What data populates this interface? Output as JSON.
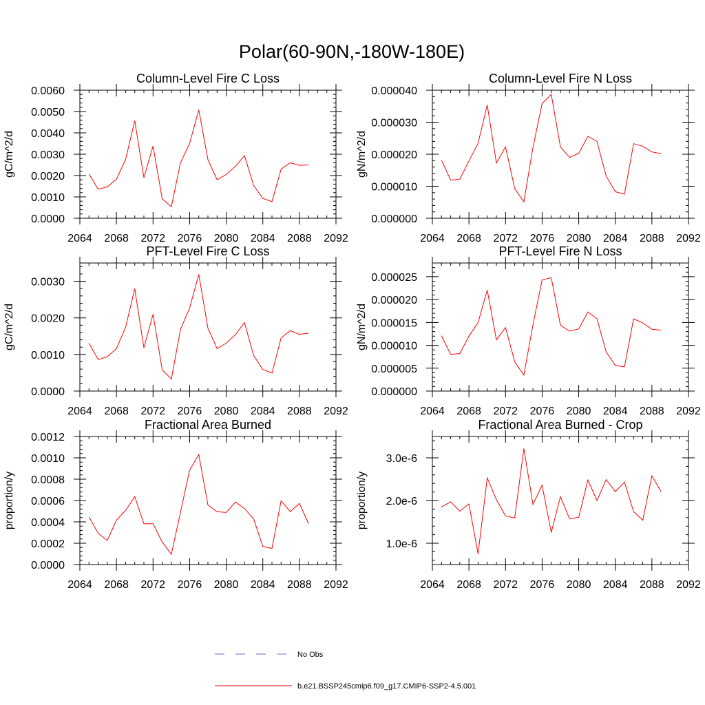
{
  "figure": {
    "title": "Polar(60-90N,-180W-180E)"
  },
  "colors": {
    "model": "#ff0000",
    "obs": "#6a6ad6",
    "axis": "#000000",
    "background": "#ffffff"
  },
  "legend": {
    "entries": [
      {
        "label": "No Obs",
        "style": "dashed",
        "color": "#6a6ad6"
      },
      {
        "label": "b.e21.BSSP245cmip6.f09_g17.CMIP6-SSP2-4.5.001",
        "style": "solid",
        "color": "#ff0000"
      }
    ]
  },
  "chart_data": [
    {
      "type": "line",
      "title": "Column-Level Fire C Loss",
      "xlabel": "",
      "ylabel": "gC/m^2/d",
      "xlim": [
        2064,
        2092
      ],
      "ylim": [
        0,
        0.006
      ],
      "xticks": [
        2064,
        2068,
        2072,
        2076,
        2080,
        2084,
        2088,
        2092
      ],
      "xtick_labels": [
        "2064",
        "2068",
        "2072",
        "2076",
        "2080",
        "2084",
        "2088",
        "2092"
      ],
      "yticks": [
        0,
        0.001,
        0.002,
        0.003,
        0.004,
        0.005,
        0.006
      ],
      "ytick_labels": [
        "0.0000",
        "0.0010",
        "0.0020",
        "0.0030",
        "0.0040",
        "0.0050",
        "0.0060"
      ],
      "x": [
        2065,
        2066,
        2067,
        2068,
        2069,
        2070,
        2071,
        2072,
        2073,
        2074,
        2075,
        2076,
        2077,
        2078,
        2079,
        2080,
        2081,
        2082,
        2083,
        2084,
        2085,
        2086,
        2087,
        2088,
        2089
      ],
      "series": [
        {
          "values": [
            0.00207,
            0.00136,
            0.00147,
            0.00183,
            0.00275,
            0.00457,
            0.0019,
            0.00338,
            0.00091,
            0.00054,
            0.0026,
            0.0035,
            0.00508,
            0.00275,
            0.0018,
            0.00205,
            0.00243,
            0.00293,
            0.00154,
            0.00093,
            0.00078,
            0.0023,
            0.0026,
            0.00248,
            0.0025
          ]
        }
      ]
    },
    {
      "type": "line",
      "title": "Column-Level Fire N Loss",
      "xlabel": "",
      "ylabel": "gN/m^2/d",
      "xlim": [
        2064,
        2092
      ],
      "ylim": [
        0,
        4e-05
      ],
      "xticks": [
        2064,
        2068,
        2072,
        2076,
        2080,
        2084,
        2088,
        2092
      ],
      "xtick_labels": [
        "2064",
        "2068",
        "2072",
        "2076",
        "2080",
        "2084",
        "2088",
        "2092"
      ],
      "yticks": [
        0,
        1e-05,
        2e-05,
        3e-05,
        4e-05
      ],
      "ytick_labels": [
        "0.000000",
        "0.000010",
        "0.000020",
        "0.000030",
        "0.000040"
      ],
      "x": [
        2065,
        2066,
        2067,
        2068,
        2069,
        2070,
        2071,
        2072,
        2073,
        2074,
        2075,
        2076,
        2077,
        2078,
        2079,
        2080,
        2081,
        2082,
        2083,
        2084,
        2085,
        2086,
        2087,
        2088,
        2089
      ],
      "series": [
        {
          "values": [
            1.81e-05,
            1.19e-05,
            1.22e-05,
            1.79e-05,
            2.34e-05,
            3.54e-05,
            1.73e-05,
            2.23e-05,
            9.3e-06,
            5.1e-06,
            2.21e-05,
            3.58e-05,
            3.87e-05,
            2.23e-05,
            1.9e-05,
            2.03e-05,
            2.56e-05,
            2.4e-05,
            1.32e-05,
            8.3e-06,
            7.5e-06,
            2.33e-05,
            2.25e-05,
            2.07e-05,
            2.02e-05
          ]
        }
      ]
    },
    {
      "type": "line",
      "title": "PFT-Level Fire C Loss",
      "xlabel": "",
      "ylabel": "gC/m^2/d",
      "xlim": [
        2064,
        2092
      ],
      "ylim": [
        0,
        0.0035
      ],
      "xticks": [
        2064,
        2068,
        2072,
        2076,
        2080,
        2084,
        2088,
        2092
      ],
      "xtick_labels": [
        "2064",
        "2068",
        "2072",
        "2076",
        "2080",
        "2084",
        "2088",
        "2092"
      ],
      "yticks": [
        0,
        0.001,
        0.002,
        0.003
      ],
      "ytick_labels": [
        "0.0000",
        "0.0010",
        "0.0020",
        "0.0030"
      ],
      "x": [
        2065,
        2066,
        2067,
        2068,
        2069,
        2070,
        2071,
        2072,
        2073,
        2074,
        2075,
        2076,
        2077,
        2078,
        2079,
        2080,
        2081,
        2082,
        2083,
        2084,
        2085,
        2086,
        2087,
        2088,
        2089
      ],
      "series": [
        {
          "values": [
            0.00131,
            0.00086,
            0.00094,
            0.00116,
            0.00174,
            0.0028,
            0.00118,
            0.0021,
            0.00058,
            0.00033,
            0.00168,
            0.00227,
            0.00319,
            0.00172,
            0.00116,
            0.00131,
            0.00154,
            0.00187,
            0.00097,
            0.00059,
            0.00049,
            0.00145,
            0.00165,
            0.00155,
            0.00158
          ]
        }
      ]
    },
    {
      "type": "line",
      "title": "PFT-Level Fire N Loss",
      "xlabel": "",
      "ylabel": "gN/m^2/d",
      "xlim": [
        2064,
        2092
      ],
      "ylim": [
        0,
        2.8e-05
      ],
      "xticks": [
        2064,
        2068,
        2072,
        2076,
        2080,
        2084,
        2088,
        2092
      ],
      "xtick_labels": [
        "2064",
        "2068",
        "2072",
        "2076",
        "2080",
        "2084",
        "2088",
        "2092"
      ],
      "yticks": [
        0,
        5e-06,
        1e-05,
        1.5e-05,
        2e-05,
        2.5e-05
      ],
      "ytick_labels": [
        "0.000000",
        "0.000005",
        "0.000010",
        "0.000015",
        "0.000020",
        "0.000025"
      ],
      "x": [
        2065,
        2066,
        2067,
        2068,
        2069,
        2070,
        2071,
        2072,
        2073,
        2074,
        2075,
        2076,
        2077,
        2078,
        2079,
        2080,
        2081,
        2082,
        2083,
        2084,
        2085,
        2086,
        2087,
        2088,
        2089
      ],
      "series": [
        {
          "values": [
            1.21e-05,
            8e-06,
            8.2e-06,
            1.2e-05,
            1.5e-05,
            2.21e-05,
            1.12e-05,
            1.39e-05,
            6.4e-06,
            3.5e-06,
            1.45e-05,
            2.43e-05,
            2.48e-05,
            1.44e-05,
            1.31e-05,
            1.36e-05,
            1.73e-05,
            1.58e-05,
            8.6e-06,
            5.6e-06,
            5.3e-06,
            1.58e-05,
            1.49e-05,
            1.35e-05,
            1.33e-05
          ]
        }
      ]
    },
    {
      "type": "line",
      "title": "Fractional Area Burned",
      "xlabel": "",
      "ylabel": "proportion/y",
      "xlim": [
        2064,
        2092
      ],
      "ylim": [
        0,
        0.0012
      ],
      "xticks": [
        2064,
        2068,
        2072,
        2076,
        2080,
        2084,
        2088,
        2092
      ],
      "xtick_labels": [
        "2064",
        "2068",
        "2072",
        "2076",
        "2080",
        "2084",
        "2088",
        "2092"
      ],
      "yticks": [
        0,
        0.0002,
        0.0004,
        0.0006,
        0.0008,
        0.001,
        0.0012
      ],
      "ytick_labels": [
        "0.0000",
        "0.0002",
        "0.0004",
        "0.0006",
        "0.0008",
        "0.0010",
        "0.0012"
      ],
      "x": [
        2065,
        2066,
        2067,
        2068,
        2069,
        2070,
        2071,
        2072,
        2073,
        2074,
        2075,
        2076,
        2077,
        2078,
        2079,
        2080,
        2081,
        2082,
        2083,
        2084,
        2085,
        2086,
        2087,
        2088,
        2089
      ],
      "series": [
        {
          "values": [
            0.000445,
            0.000292,
            0.000226,
            0.000416,
            0.000507,
            0.000636,
            0.000382,
            0.000382,
            0.000211,
            9.6e-05,
            0.000489,
            0.000883,
            0.001032,
            0.000558,
            0.000495,
            0.000488,
            0.000586,
            0.000525,
            0.000427,
            0.00017,
            0.000151,
            0.000599,
            0.000496,
            0.000573,
            0.000384
          ]
        }
      ]
    },
    {
      "type": "line",
      "title": "Fractional Area Burned - Crop",
      "xlabel": "",
      "ylabel": "proportion/y",
      "xlim": [
        2064,
        2092
      ],
      "ylim": [
        5e-07,
        3.5e-06
      ],
      "xticks": [
        2064,
        2068,
        2072,
        2076,
        2080,
        2084,
        2088,
        2092
      ],
      "xtick_labels": [
        "2064",
        "2068",
        "2072",
        "2076",
        "2080",
        "2084",
        "2088",
        "2092"
      ],
      "yticks": [
        1e-06,
        2e-06,
        3e-06
      ],
      "ytick_labels": [
        "1.0e-6",
        "2.0e-6",
        "3.0e-6"
      ],
      "x": [
        2065,
        2066,
        2067,
        2068,
        2069,
        2070,
        2071,
        2072,
        2073,
        2074,
        2075,
        2076,
        2077,
        2078,
        2079,
        2080,
        2081,
        2082,
        2083,
        2084,
        2085,
        2086,
        2087,
        2088,
        2089
      ],
      "series": [
        {
          "values": [
            1.85e-06,
            1.97e-06,
            1.75e-06,
            1.92e-06,
            7.5e-07,
            2.53e-06,
            2.02e-06,
            1.64e-06,
            1.59e-06,
            3.22e-06,
            1.91e-06,
            2.36e-06,
            1.25e-06,
            2.09e-06,
            1.57e-06,
            1.61e-06,
            2.48e-06,
            2e-06,
            2.49e-06,
            2.21e-06,
            2.43e-06,
            1.74e-06,
            1.54e-06,
            2.58e-06,
            2.21e-06
          ]
        }
      ]
    }
  ]
}
